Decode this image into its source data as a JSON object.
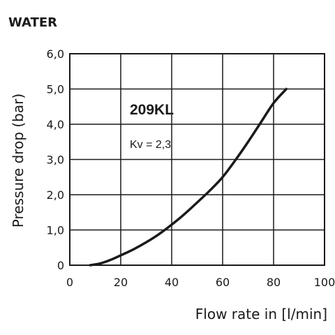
{
  "chart_data": {
    "type": "line",
    "title": "WATER",
    "xlabel": "Flow rate in [l/min]",
    "ylabel": "Pressure drop (bar)",
    "xlim": [
      0,
      100
    ],
    "ylim": [
      0,
      6
    ],
    "x_ticks": [
      "0",
      "20",
      "40",
      "60",
      "80",
      "100"
    ],
    "y_ticks": [
      "0",
      "1,0",
      "2,0",
      "3,0",
      "4,0",
      "5,0",
      "6,0"
    ],
    "grid": true,
    "annotations": [
      "209KL",
      "Kv = 2,3"
    ],
    "series": [
      {
        "x": [
          8,
          12,
          16,
          20,
          25,
          30,
          35,
          40,
          45,
          50,
          55,
          60,
          65,
          70,
          75,
          80,
          85
        ],
        "y": [
          0,
          0.05,
          0.15,
          0.28,
          0.45,
          0.65,
          0.88,
          1.15,
          1.45,
          1.78,
          2.12,
          2.5,
          2.98,
          3.5,
          4.05,
          4.6,
          5.0
        ]
      }
    ],
    "line_color": "#1a1a1a"
  }
}
